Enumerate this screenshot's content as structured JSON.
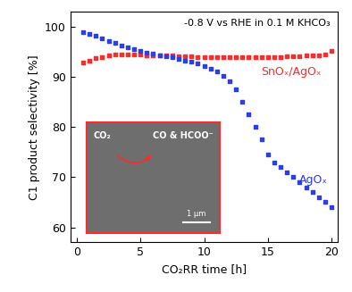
{
  "chart_data": {
    "type": "scatter",
    "x_label": "CO₂RR time [h]",
    "y_label": "C1 product selectivity [%]",
    "annotation": "-0.8 V vs RHE in 0.1 M KHCO₃",
    "inset_texts": [
      "CO₂",
      "CO & HCOO⁻",
      "1 μm"
    ],
    "xlim": [
      -0.5,
      20.5
    ],
    "xticks": [
      0,
      5,
      10,
      15,
      20
    ],
    "ylim": [
      57,
      103
    ],
    "yticks": [
      60,
      70,
      80,
      90,
      100
    ],
    "grid": false,
    "x": [
      0.5,
      1.0,
      1.5,
      2.0,
      2.5,
      3.0,
      3.5,
      4.0,
      4.5,
      5.0,
      5.5,
      6.0,
      6.5,
      7.0,
      7.5,
      8.0,
      8.5,
      9.0,
      9.5,
      10.0,
      10.5,
      11.0,
      11.5,
      12.0,
      12.5,
      13.0,
      13.5,
      14.0,
      14.5,
      15.0,
      15.5,
      16.0,
      16.5,
      17.0,
      17.5,
      18.0,
      18.5,
      19.0,
      19.5,
      20.0
    ],
    "series": [
      {
        "name": "SnOₓ/AgOₓ",
        "color": "#ff2a2a",
        "marker": "s",
        "values": [
          92.8,
          93.3,
          93.7,
          94.0,
          94.2,
          94.4,
          94.5,
          94.5,
          94.4,
          94.4,
          94.3,
          94.3,
          94.2,
          94.2,
          94.2,
          94.1,
          94.1,
          94.1,
          94.0,
          94.0,
          94.0,
          94.0,
          94.0,
          94.0,
          94.0,
          94.0,
          94.0,
          94.0,
          94.0,
          94.0,
          94.0,
          94.0,
          94.1,
          94.1,
          94.1,
          94.2,
          94.2,
          94.3,
          94.5,
          95.2
        ]
      },
      {
        "name": "AgOₓ",
        "color": "#2a3fe8",
        "marker": "s",
        "values": [
          99.0,
          98.6,
          98.2,
          97.7,
          97.2,
          96.8,
          96.3,
          95.9,
          95.5,
          95.1,
          94.8,
          94.6,
          94.3,
          94.1,
          93.9,
          93.6,
          93.3,
          93.0,
          92.6,
          92.2,
          91.7,
          91.0,
          90.2,
          89.2,
          87.5,
          85.0,
          82.5,
          80.0,
          77.5,
          74.5,
          73.0,
          72.0,
          71.0,
          70.0,
          69.0,
          68.0,
          67.0,
          66.0,
          65.0,
          64.0
        ]
      }
    ]
  }
}
